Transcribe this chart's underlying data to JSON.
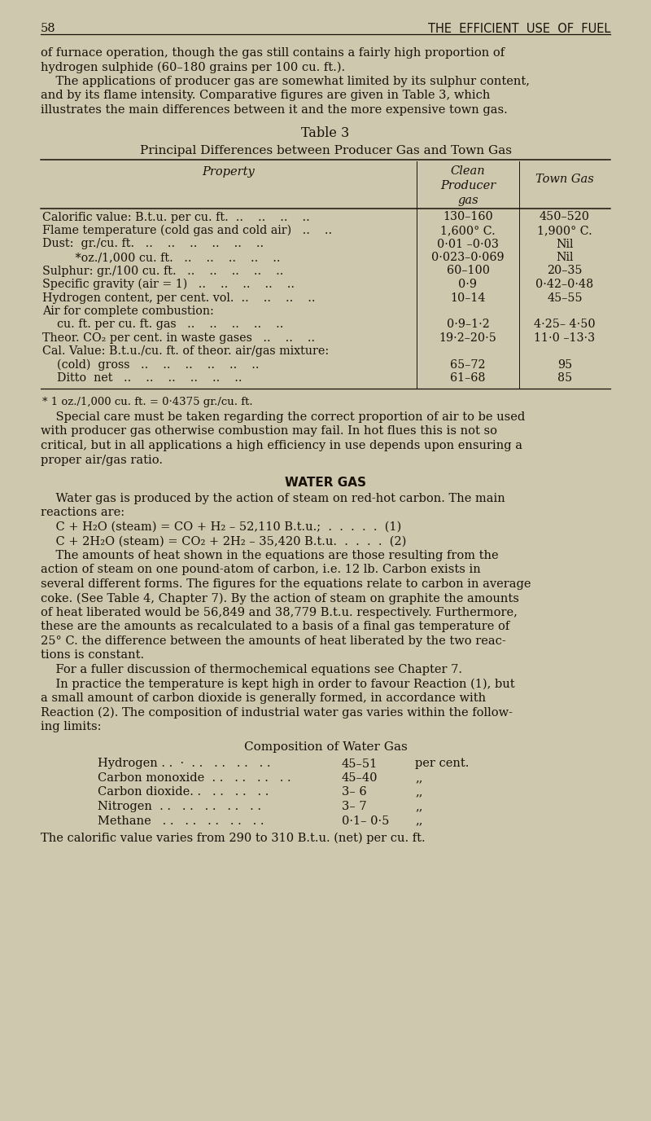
{
  "bg_color": "#cec8ae",
  "text_color": "#1a1008",
  "page_number": "58",
  "page_header": "THE  EFFICIENT  USE  OF  FUEL",
  "intro_lines": [
    "of furnace operation, though the gas still contains a fairly high proportion of",
    "hydrogen sulphide (60–180 grains per 100 cu. ft.).",
    "    The applications of producer gas are somewhat limited by its sulphur content,",
    "and by its flame intensity. Comparative figures are given in Table 3, which",
    "illustrates the main differences between it and the more expensive town gas."
  ],
  "table_title": "Table 3",
  "table_subtitle": "Principal Differences between Producer Gas and Town Gas",
  "table_header_prop": "Property",
  "table_header_clean": "Clean\nProducer\ngas",
  "table_header_town": "Town Gas",
  "table_rows": [
    [
      "Calorific value: B.t.u. per cu. ft.  ..    ..    ..    ..",
      "130–160",
      "450–520"
    ],
    [
      "Flame temperature (cold gas and cold air)   ..    ..",
      "1,600° C.",
      "1,900° C."
    ],
    [
      "Dust:  gr./cu. ft.   ..    ..    ..    ..    ..    ..",
      "0·01 –0·03",
      "Nil"
    ],
    [
      "         *oz./1,000 cu. ft.   ..    ..    ..    ..    ..",
      "0·023–0·069",
      "Nil"
    ],
    [
      "Sulphur: gr./100 cu. ft.   ..    ..    ..    ..    ..",
      "60–100",
      "20–35"
    ],
    [
      "Specific gravity (air = 1)   ..    ..    ..    ..    ..",
      "0·9",
      "0·42–0·48"
    ],
    [
      "Hydrogen content, per cent. vol.  ..    ..    ..    ..",
      "10–14",
      "45–55"
    ],
    [
      "Air for complete combustion:",
      "",
      ""
    ],
    [
      "    cu. ft. per cu. ft. gas   ..    ..    ..    ..    ..",
      "0·9–1·2",
      "4·25– 4·50"
    ],
    [
      "Theor. CO₂ per cent. in waste gases   ..    ..    ..",
      "19·2–20·5",
      "11·0 –13·3"
    ],
    [
      "Cal. Value: B.t.u./cu. ft. of theor. air/gas mixture:",
      "",
      ""
    ],
    [
      "    (cold)  gross   ..    ..    ..    ..    ..    ..",
      "65–72",
      "95"
    ],
    [
      "    Ditto  net   ..    ..    ..    ..    ..    ..",
      "61–68",
      "85"
    ]
  ],
  "footnote": "* 1 oz./1,000 cu. ft. = 0·4375 gr./cu. ft.",
  "para2": [
    "    Special care must be taken regarding the correct proportion of air to be used",
    "with producer gas otherwise combustion may fail. In hot flues this is not so",
    "critical, but in all applications a high efficiency in use depends upon ensuring a",
    "proper air/gas ratio."
  ],
  "section_header": "WATER GAS",
  "para3": [
    "    Water gas is produced by the action of steam on red-hot carbon. The main",
    "reactions are:"
  ],
  "eq1": "    C + H₂O (steam) = CO + H₂ – 52,110 B.t.u.;  .  .  .  .  .  (1)",
  "eq2": "    C + 2H₂O (steam) = CO₂ + 2H₂ – 35,420 B.t.u.  .  .  .  .  (2)",
  "para4_italic_word": "pound-atom",
  "para4": [
    "    The amounts of heat shown in the equations are those resulting from the",
    "action of steam on one pound-atom of carbon, i.e. 12 lb. Carbon exists in",
    "several different forms. The figures for the equations relate to carbon in average",
    "coke. (See Table 4, Chapter 7). By the action of steam on graphite the amounts",
    "of heat liberated would be 56,849 and 38,779 B.t.u. respectively. Furthermore,",
    "these are the amounts as recalculated to a basis of a final gas temperature of",
    "25° C. the difference between the amounts of heat liberated by the two reac-",
    "tions is constant."
  ],
  "para4b": "    For a fuller discussion of thermochemical equations see Chapter 7.",
  "para5": [
    "    In practice the temperature is kept high in order to favour Reaction (1), but",
    "a small amount of carbon dioxide is generally formed, in accordance with",
    "Reaction (2). The composition of industrial water gas varies within the follow-",
    "ing limits:"
  ],
  "comp_title": "Composition of Water Gas",
  "comp_rows": [
    [
      "Hydrogen . .  ·  . .   . .   . .   . .",
      "45–51",
      "per cent."
    ],
    [
      "Carbon monoxide  . .   . .   . .   . .",
      "45–40",
      ",,"
    ],
    [
      "Carbon dioxide. .   . .   . .   . .",
      "3– 6",
      ",,"
    ],
    [
      "Nitrogen  . .   . .   . .   . .   . .",
      "3– 7",
      ",,"
    ],
    [
      "Methane   . .   . .   . .   . .   . .",
      "0·1– 0·5",
      ",,"
    ]
  ],
  "final_line": "The calorific value varies from 290 to 310 B.t.u. (net) per cu. ft."
}
